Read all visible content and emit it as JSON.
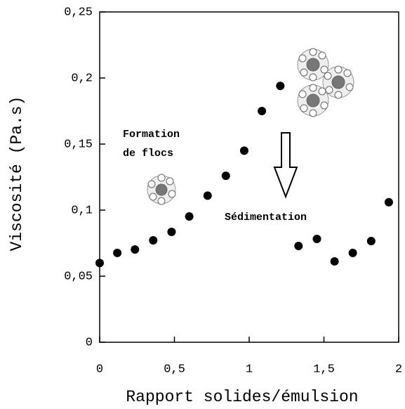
{
  "chart_data": {
    "type": "scatter",
    "x_label": "Rapport solides/émulsion",
    "y_label": "Viscosité (Pa.s)",
    "annotations": [
      "Formation",
      "de flocs",
      "Sédimentation"
    ],
    "series": [
      {
        "color": "#000000",
        "x": [
          0,
          0.118,
          0.236,
          0.358,
          0.481,
          0.599,
          0.722,
          0.844,
          0.967,
          1.085,
          1.208,
          1.33,
          1.453,
          1.571,
          1.693,
          1.816,
          1.934
        ],
        "values": [
          0.06,
          0.0676,
          0.0702,
          0.0771,
          0.0835,
          0.0952,
          0.111,
          0.126,
          0.145,
          0.175,
          0.194,
          0.0729,
          0.0782,
          0.0612,
          0.0676,
          0.0766,
          0.106
        ]
      }
    ],
    "xlim": [
      0,
      2
    ],
    "xticks": [
      0,
      {
        "value": 0.5,
        "label": "0,5"
      },
      1,
      {
        "value": 1.5,
        "label": "1,5"
      },
      2
    ],
    "ylim": [
      0,
      0.25
    ],
    "yticks": [
      0,
      {
        "value": 0.05,
        "label": "0,05"
      },
      {
        "value": 0.1,
        "label": "0,1"
      },
      {
        "value": 0.15,
        "label": "0,15"
      },
      {
        "value": 0.2,
        "label": "0,2"
      },
      {
        "value": 0.25,
        "label": "0,25"
      }
    ],
    "grid": false
  }
}
